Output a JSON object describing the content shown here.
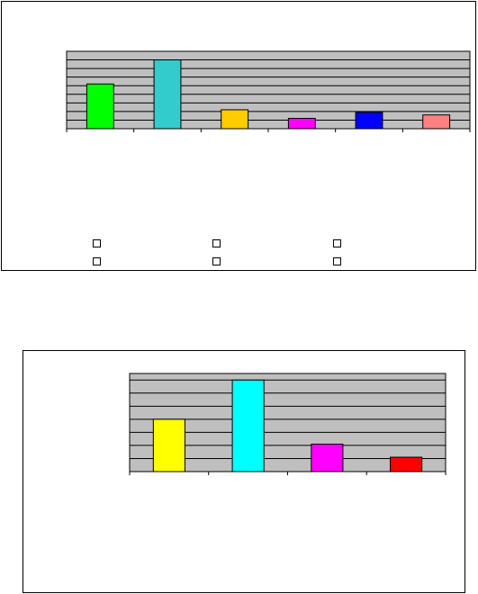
{
  "colors": {
    "plot_area": "#bfbfbf",
    "gridline": "#000000",
    "axis": "#000000",
    "bar_outline": "#000000"
  },
  "chart_data": [
    {
      "type": "bar",
      "categories": [
        "",
        "",
        "",
        "",
        "",
        ""
      ],
      "values": [
        5.2,
        8.0,
        2.2,
        1.2,
        1.9,
        1.6
      ],
      "colors": [
        "#00ff00",
        "#33cccc",
        "#ffcc00",
        "#ff00ff",
        "#0000ff",
        "#ff8080"
      ],
      "ylim": [
        0,
        9
      ],
      "gridlines": 9,
      "grid": true,
      "legend": {
        "placement": "bottom",
        "entries": [
          "",
          "",
          "",
          "",
          "",
          ""
        ]
      }
    },
    {
      "type": "bar",
      "categories": [
        "",
        "",
        "",
        ""
      ],
      "values": [
        4.0,
        7.0,
        2.1,
        1.1
      ],
      "colors": [
        "#ffff00",
        "#00ffff",
        "#ff00ff",
        "#ff0000"
      ],
      "ylim": [
        0,
        7.5
      ],
      "gridlines": 7,
      "grid": true,
      "legend": null
    }
  ]
}
